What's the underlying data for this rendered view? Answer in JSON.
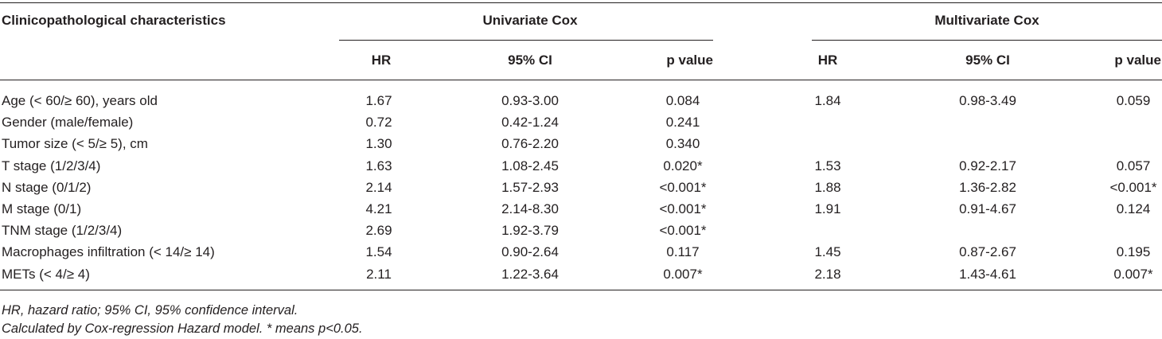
{
  "table": {
    "header": {
      "characteristics_label": "Clinicopathological characteristics",
      "univariate_label": "Univariate Cox",
      "multivariate_label": "Multivariate Cox",
      "univariate_columns": [
        "HR",
        "95% CI",
        "p value"
      ],
      "multivariate_columns": [
        "HR",
        "95% CI",
        "p value"
      ]
    },
    "rows": [
      {
        "label": "Age (< 60/≥ 60), years old",
        "uni_hr": "1.67",
        "uni_ci": "0.93-3.00",
        "uni_p": "0.084",
        "multi_hr": "1.84",
        "multi_ci": "0.98-3.49",
        "multi_p": "0.059"
      },
      {
        "label": "Gender (male/female)",
        "uni_hr": "0.72",
        "uni_ci": "0.42-1.24",
        "uni_p": "0.241",
        "multi_hr": "",
        "multi_ci": "",
        "multi_p": ""
      },
      {
        "label": "Tumor size (< 5/≥ 5), cm",
        "uni_hr": "1.30",
        "uni_ci": "0.76-2.20",
        "uni_p": "0.340",
        "multi_hr": "",
        "multi_ci": "",
        "multi_p": ""
      },
      {
        "label": "T stage (1/2/3/4)",
        "uni_hr": "1.63",
        "uni_ci": "1.08-2.45",
        "uni_p": "0.020*",
        "multi_hr": "1.53",
        "multi_ci": "0.92-2.17",
        "multi_p": "0.057"
      },
      {
        "label": "N stage (0/1/2)",
        "uni_hr": "2.14",
        "uni_ci": "1.57-2.93",
        "uni_p": "<0.001*",
        "multi_hr": "1.88",
        "multi_ci": "1.36-2.82",
        "multi_p": "<0.001*"
      },
      {
        "label": "M stage (0/1)",
        "uni_hr": "4.21",
        "uni_ci": "2.14-8.30",
        "uni_p": "<0.001*",
        "multi_hr": "1.91",
        "multi_ci": "0.91-4.67",
        "multi_p": "0.124"
      },
      {
        "label": "TNM stage (1/2/3/4)",
        "uni_hr": "2.69",
        "uni_ci": "1.92-3.79",
        "uni_p": "<0.001*",
        "multi_hr": "",
        "multi_ci": "",
        "multi_p": ""
      },
      {
        "label": "Macrophages infiltration (< 14/≥ 14)",
        "uni_hr": "1.54",
        "uni_ci": "0.90-2.64",
        "uni_p": "0.117",
        "multi_hr": "1.45",
        "multi_ci": "0.87-2.67",
        "multi_p": "0.195"
      },
      {
        "label": "METs (< 4/≥ 4)",
        "uni_hr": "2.11",
        "uni_ci": "1.22-3.64",
        "uni_p": "0.007*",
        "multi_hr": "2.18",
        "multi_ci": "1.43-4.61",
        "multi_p": "0.007*"
      }
    ]
  },
  "footnotes": [
    "HR, hazard ratio; 95% CI, 95% confidence interval.",
    "Calculated by Cox-regression Hazard model. * means p<0.05."
  ]
}
